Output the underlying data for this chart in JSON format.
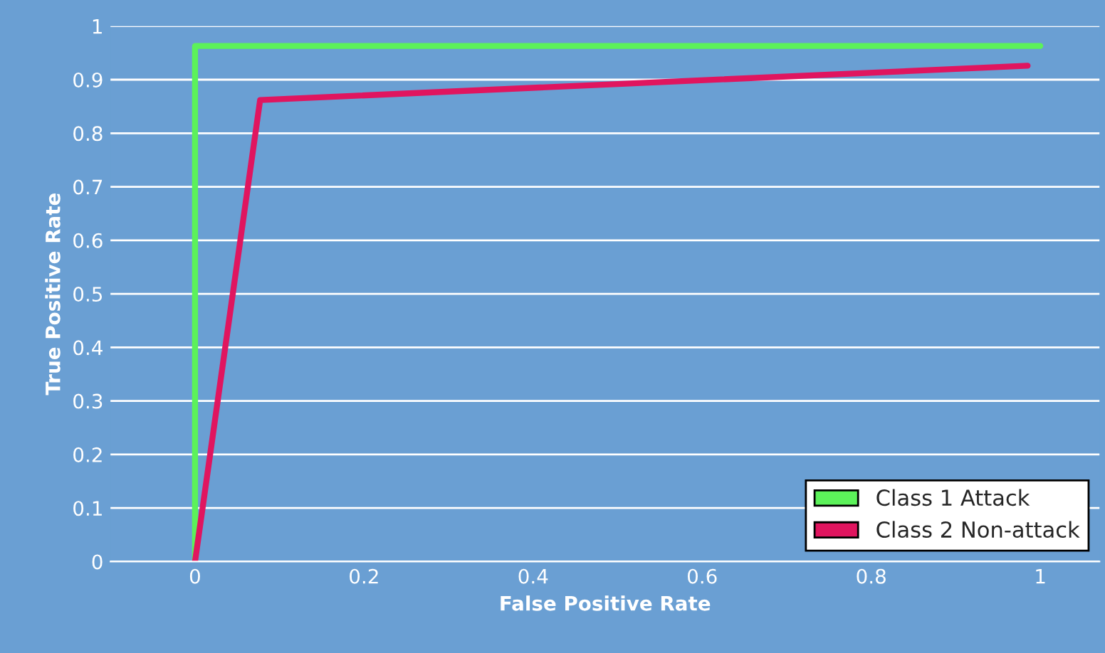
{
  "chart_data": {
    "type": "line",
    "xlabel": "False Positive Rate",
    "ylabel": "True Positive Rate",
    "series": [
      {
        "name": "Class 1 Attack",
        "color": "#5cf25a",
        "x": [
          0,
          0,
          1.0
        ],
        "values": [
          0,
          0.963,
          0.963
        ]
      },
      {
        "name": "Class 2 Non-attack",
        "color": "#e0155f",
        "x": [
          0,
          0.077,
          0.985
        ],
        "values": [
          0,
          0.862,
          0.926
        ]
      }
    ],
    "xlim": [
      -0.1,
      1.07
    ],
    "ylim": [
      0,
      1
    ],
    "xticks": [
      0,
      0.2,
      0.4,
      0.6,
      0.8,
      1
    ],
    "yticks": [
      0,
      0.1,
      0.2,
      0.3,
      0.4,
      0.5,
      0.6,
      0.7,
      0.8,
      0.9,
      1
    ],
    "grid": "y",
    "legend": "bottom right",
    "marker": "none",
    "line_style": "solid"
  }
}
